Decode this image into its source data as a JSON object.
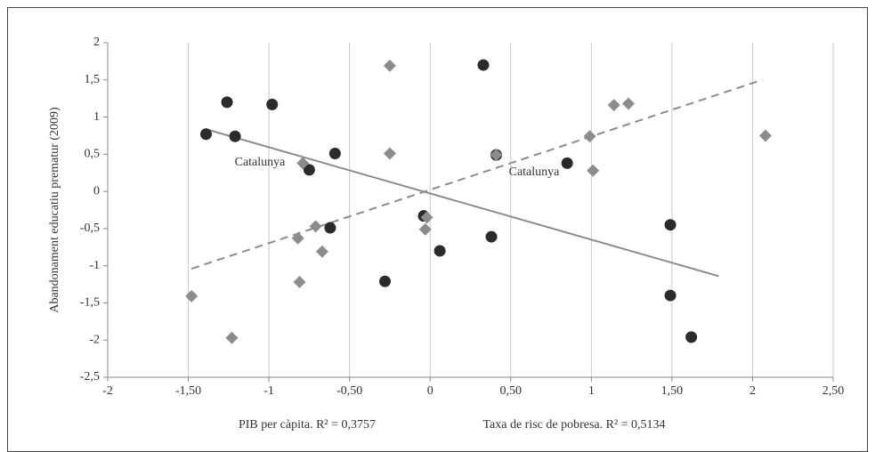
{
  "chart_data": {
    "type": "scatter",
    "y_label": "Abandonament educatiu prematur (2009)",
    "xlim": [
      -2,
      2.5
    ],
    "xticks": [
      -2,
      {
        "value": -1.5,
        "label": "-1,50"
      },
      -1,
      {
        "value": -0.5,
        "label": "-0,50"
      },
      0,
      {
        "value": 0.5,
        "label": "0,50"
      },
      1,
      {
        "value": 1.5,
        "label": "1,50"
      },
      2,
      {
        "value": 2.5,
        "label": "2,50"
      }
    ],
    "ylim": [
      -2.5,
      2
    ],
    "yticks": [
      2,
      {
        "value": 1.5,
        "label": "1,5"
      },
      1,
      {
        "value": 0.5,
        "label": "0,5"
      },
      0,
      {
        "value": -0.5,
        "label": "-0,5"
      },
      -1,
      {
        "value": -1.5,
        "label": "-1,5"
      },
      -2,
      {
        "value": -2.5,
        "label": "-2,5"
      }
    ],
    "grid": "x",
    "series": [
      {
        "name": "PIB per càpita. R² = 0,3757",
        "color": "#2b2b2b",
        "marker": "circle",
        "x": [
          -1.39,
          -1.26,
          -1.21,
          -0.98,
          -0.75,
          -0.59,
          -0.62,
          -0.28,
          -0.04,
          0.06,
          0.33,
          0.38,
          0.41,
          0.85,
          1.49,
          1.49,
          1.62
        ],
        "values": [
          0.77,
          1.2,
          0.74,
          1.17,
          0.29,
          0.51,
          -0.49,
          -1.21,
          -0.33,
          -0.8,
          1.7,
          -0.61,
          0.49,
          0.38,
          -0.45,
          -1.4,
          -1.96
        ],
        "trendline": {
          "style": "solid",
          "color": "#8c8c8c",
          "x": [
            -1.38,
            1.79
          ],
          "values": [
            0.83,
            -1.14
          ]
        }
      },
      {
        "name": "Taxa de risc de pobresa. R² = 0,5134",
        "color": "#8c8c8c",
        "marker": "diamond",
        "x": [
          -1.48,
          -1.23,
          -0.79,
          -0.82,
          -0.81,
          -0.71,
          -0.67,
          -0.25,
          -0.25,
          -0.03,
          -0.02,
          0.41,
          0.99,
          1.01,
          1.14,
          1.23,
          2.08
        ],
        "values": [
          -1.41,
          -1.97,
          0.38,
          -0.63,
          -1.22,
          -0.47,
          -0.81,
          1.69,
          0.51,
          -0.51,
          -0.35,
          0.49,
          0.74,
          0.28,
          1.16,
          1.18,
          0.75
        ],
        "trendline": {
          "style": "dashed",
          "color": "#8c8c8c",
          "x": [
            -1.48,
            2.06
          ],
          "values": [
            -1.04,
            1.5
          ]
        }
      }
    ],
    "annotations": [
      "Catalunya",
      "Catalunya"
    ]
  }
}
